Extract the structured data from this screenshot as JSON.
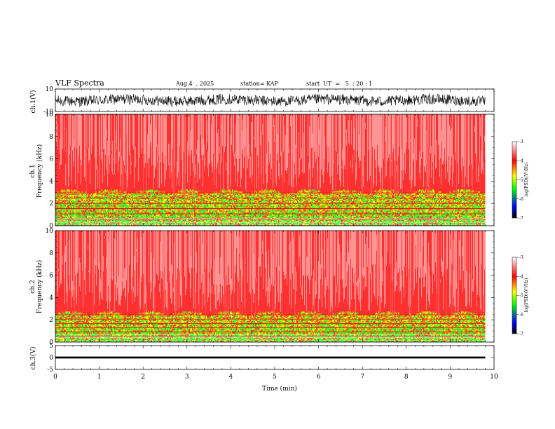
{
  "header": {
    "title": "VLF Spectra",
    "date": "Aug.4  , 2025",
    "station": "station= KAP",
    "start": "start  UT  =   5  : 20 : 1"
  },
  "chart_data": [
    {
      "type": "line",
      "name": "ch1-waveform",
      "ylabel": "ch.1(V)",
      "ylim": [
        -10,
        10
      ],
      "yticks": [
        "10",
        "-10"
      ],
      "xlim": [
        0,
        9.8
      ],
      "amplitude_range": [
        -6,
        6
      ],
      "color": "#000000"
    },
    {
      "type": "heatmap",
      "name": "ch1-spectrogram",
      "ylabel": "ch.1\nFrequency  (kHz)",
      "ylim": [
        0,
        10
      ],
      "yticks": [
        "0",
        "2",
        "4",
        "6",
        "8",
        "10"
      ],
      "xlim": [
        0,
        9.8
      ],
      "band_top_khz": 3.2,
      "colorbar": {
        "label": "log(PSD)(V²/Hz)",
        "range": [
          -7,
          -3
        ],
        "ticks": [
          "-3",
          "-4",
          "-5",
          "-6",
          "-7"
        ]
      }
    },
    {
      "type": "heatmap",
      "name": "ch2-spectrogram",
      "ylabel": "ch.2\nFrequency  (kHz)",
      "ylim": [
        0,
        10
      ],
      "yticks": [
        "0",
        "2",
        "4",
        "6",
        "8",
        "10"
      ],
      "xlim": [
        0,
        9.8
      ],
      "band_top_khz": 2.7,
      "colorbar": {
        "label": "log(PSD)(V²/Hz)",
        "range": [
          -7,
          -3
        ],
        "ticks": [
          "-3",
          "-4",
          "-5",
          "-6",
          "-7"
        ]
      }
    },
    {
      "type": "line",
      "name": "ch3-waveform",
      "ylabel": "ch.3(V)",
      "ylim": [
        -5,
        5
      ],
      "yticks": [
        "5",
        "0",
        "-5"
      ],
      "xlim": [
        0,
        9.8
      ],
      "amplitude_range": [
        -0.4,
        0.4
      ],
      "color": "#000000"
    }
  ],
  "x_axis": {
    "label": "Time  (min)",
    "range": [
      0,
      10
    ],
    "ticks": [
      "0",
      "1",
      "2",
      "3",
      "4",
      "5",
      "6",
      "7",
      "8",
      "9",
      "10"
    ]
  },
  "colors": {
    "white": "#ffffff",
    "red": "#ff0000",
    "yellow": "#ffff00",
    "green": "#00ff00",
    "blue": "#0000ff",
    "black": "#000000"
  }
}
